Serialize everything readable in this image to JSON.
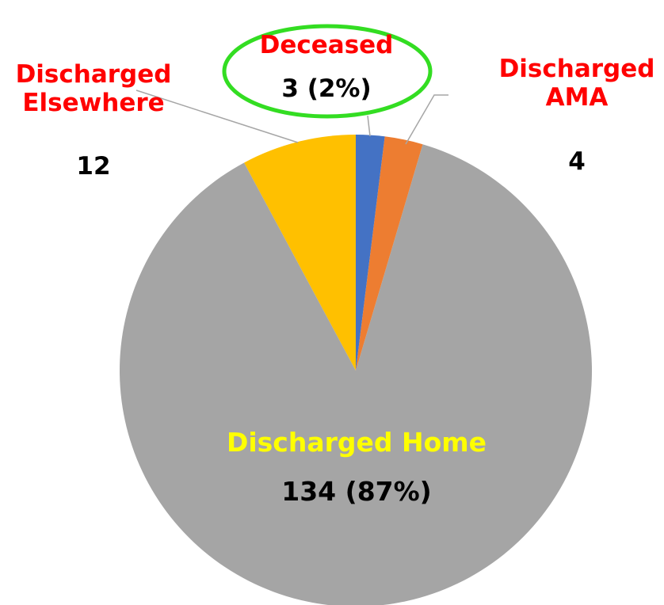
{
  "chart_data": {
    "type": "pie",
    "categories": [
      "Deceased",
      "Discharged AMA",
      "Discharged Home",
      "Discharged Elsewhere"
    ],
    "values": [
      3,
      4,
      134,
      12
    ],
    "value_labels": [
      "3 (2%)",
      "4",
      "134 (87%)",
      "12"
    ],
    "colors": [
      "#4472c4",
      "#ed7d31",
      "#a5a5a5",
      "#ffc000"
    ]
  }
}
